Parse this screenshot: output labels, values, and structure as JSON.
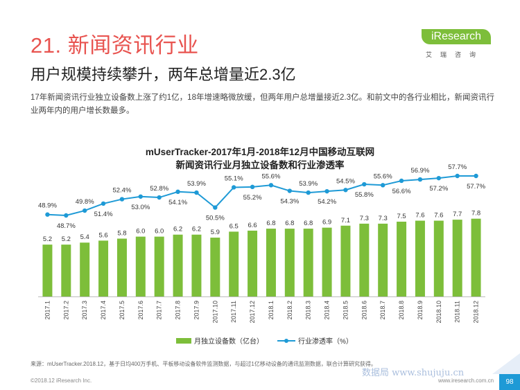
{
  "header": {
    "section_title": "21. 新闻资讯行业",
    "logo_brand": "iResearch",
    "logo_sub": "艾瑞咨询",
    "headline": "用户规模持续攀升，两年总增量近2.3亿",
    "intro": "17年新闻资讯行业独立设备数上涨了约1亿，18年增速略微放缓，但两年用户总增量接近2.3亿。和前文中的各行业相比，新闻资讯行业两年内的用户增长数最多。"
  },
  "colors": {
    "title_red": "#e8534f",
    "bar_green": "#7dbe3a",
    "line_blue": "#1e9ad6",
    "brand_green": "#7dbe3a"
  },
  "chart_data": {
    "type": "bar",
    "title": "mUserTracker-2017年1月-2018年12月中国移动互联网",
    "subtitle": "新闻资讯行业月独立设备数和行业渗透率",
    "categories": [
      "2017.1",
      "2017.2",
      "2017.3",
      "2017.4",
      "2017.5",
      "2017.6",
      "2017.7",
      "2017.8",
      "2017.9",
      "2017.10",
      "2017.11",
      "2017.12",
      "2018.1",
      "2018.2",
      "2018.3",
      "2018.4",
      "2018.5",
      "2018.6",
      "2018.7",
      "2018.8",
      "2018.9",
      "2018.10",
      "2018.11",
      "2018.12"
    ],
    "series": [
      {
        "name": "月独立设备数（亿台）",
        "type": "bar",
        "values": [
          5.2,
          5.2,
          5.4,
          5.6,
          5.8,
          6.0,
          6.0,
          6.2,
          6.2,
          5.9,
          6.5,
          6.6,
          6.8,
          6.8,
          6.8,
          6.9,
          7.1,
          7.3,
          7.3,
          7.5,
          7.6,
          7.6,
          7.7,
          7.8
        ]
      },
      {
        "name": "行业渗透率（%）",
        "type": "line",
        "values": [
          48.9,
          48.7,
          49.8,
          51.4,
          52.4,
          53.0,
          52.8,
          54.1,
          53.9,
          50.5,
          55.1,
          55.2,
          55.6,
          54.3,
          53.9,
          54.2,
          54.5,
          55.8,
          55.6,
          56.6,
          56.9,
          57.2,
          57.7,
          57.7
        ],
        "labels": [
          "48.9%",
          "48.7%",
          "49.8%",
          "51.4%",
          "52.4%",
          "53.0%",
          "52.8%",
          "54.1%",
          "53.9%",
          "50.5%",
          "55.1%",
          "55.2%",
          "55.6%",
          "54.3%",
          "53.9%",
          "54.2%",
          "54.5%",
          "55.8%",
          "55.6%",
          "56.6%",
          "56.9%",
          "57.2%",
          "57.7%",
          "57.7%"
        ],
        "label_position": [
          "above",
          "below",
          "above",
          "below",
          "above",
          "below",
          "above",
          "below",
          "above",
          "below",
          "above",
          "below",
          "above",
          "below",
          "above",
          "below",
          "above",
          "below",
          "above",
          "below",
          "above",
          "below",
          "above",
          "below"
        ]
      }
    ],
    "legend_position": "bottom-center",
    "grid": false
  },
  "footer": {
    "source": "来源：mUserTracker.2018.12，基于日均400万手机、平板移动设备软件监测数据，与超过1亿移动设备的通讯监测数据，联合计算研究获得。",
    "copyright": "©2018.12 iResearch Inc.",
    "website": "www.iresearch.com.cn",
    "watermark": "数据局 www.shujuju.cn",
    "page_number": "98"
  }
}
